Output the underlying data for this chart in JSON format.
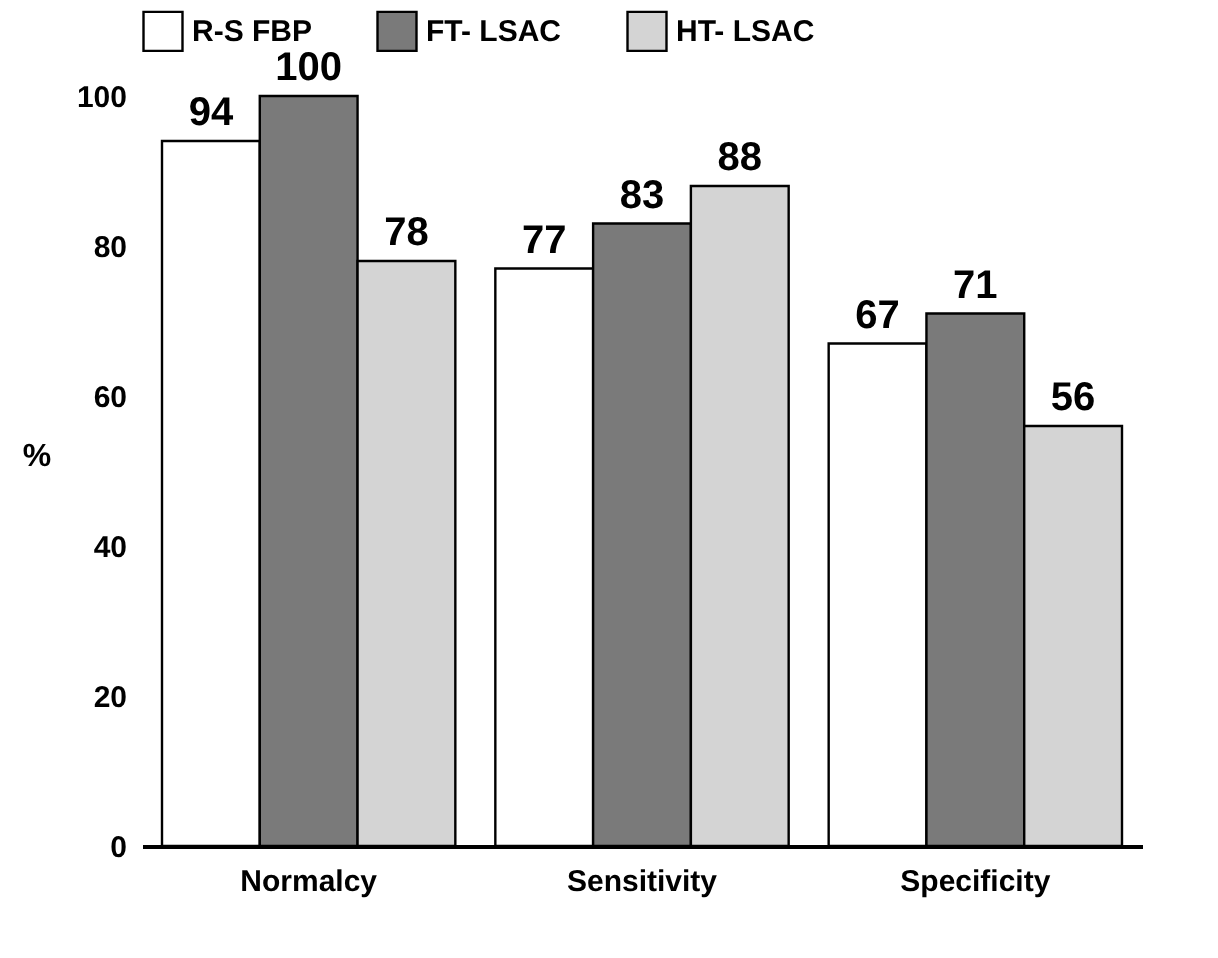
{
  "chart_data": {
    "type": "bar",
    "categories": [
      "Normalcy",
      "Sensitivity",
      "Specificity"
    ],
    "series": [
      {
        "name": "R-S FBP",
        "color": "#ffffff",
        "values": [
          94,
          77,
          67
        ]
      },
      {
        "name": "FT- LSAC",
        "color": "#7a7a7a",
        "values": [
          100,
          83,
          71
        ]
      },
      {
        "name": "HT- LSAC",
        "color": "#d4d4d4",
        "values": [
          78,
          88,
          56
        ]
      }
    ],
    "ylabel": "%",
    "ylim": [
      0,
      100
    ],
    "yticks": [
      0,
      20,
      40,
      60,
      80,
      100
    ],
    "grid": false,
    "legend": "top",
    "data_labels": true
  }
}
